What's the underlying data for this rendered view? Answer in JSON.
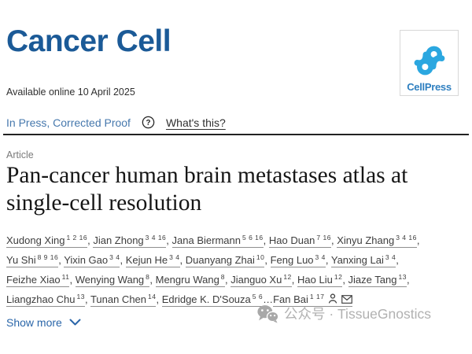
{
  "header": {
    "journal": "Cancer Cell",
    "logo_text": "CellPress"
  },
  "meta": {
    "available_online": "Available online 10 April 2025",
    "status": "In Press, Corrected Proof",
    "whats_this": "What's this?"
  },
  "article": {
    "type": "Article",
    "title": "Pan-cancer human brain metastases atlas at\nsingle-cell resolution",
    "show_more_label": "Show more",
    "authors": [
      {
        "name": "Xudong Xing",
        "sup": "1 2 16",
        "trail": ", "
      },
      {
        "name": "Jian Zhong",
        "sup": "3 4 16",
        "trail": ", "
      },
      {
        "name": "Jana Biermann",
        "sup": "5 6 16",
        "trail": ", "
      },
      {
        "name": "Hao Duan",
        "sup": "7 16",
        "trail": ", "
      },
      {
        "name": "Xinyu Zhang",
        "sup": "3 4 16",
        "trail": ",\n"
      },
      {
        "name": "Yu Shi",
        "sup": "8 9 16",
        "trail": ", "
      },
      {
        "name": "Yixin Gao",
        "sup": "3 4",
        "trail": ", "
      },
      {
        "name": "Kejun He",
        "sup": "3 4",
        "trail": ", "
      },
      {
        "name": "Duanyang Zhai",
        "sup": "10",
        "trail": ", "
      },
      {
        "name": "Feng Luo",
        "sup": "3 4",
        "trail": ", "
      },
      {
        "name": "Yanxing Lai",
        "sup": "3 4",
        "trail": ",\n"
      },
      {
        "name": "Feizhe Xiao",
        "sup": "11",
        "trail": ", "
      },
      {
        "name": "Wenying Wang",
        "sup": "8",
        "trail": ", "
      },
      {
        "name": "Mengru Wang",
        "sup": "8",
        "trail": ", "
      },
      {
        "name": "Jianguo Xu",
        "sup": "12",
        "trail": ", "
      },
      {
        "name": "Hao Liu",
        "sup": "12",
        "trail": ", "
      },
      {
        "name": "Jiaze Tang",
        "sup": "13",
        "trail": ",\n"
      },
      {
        "name": "Liangzhao Chu",
        "sup": "13",
        "trail": ", "
      },
      {
        "name": "Tunan Chen",
        "sup": "14",
        "trail": ", "
      },
      {
        "name": "Edridge K. D'Souza",
        "sup": "5 6",
        "trail": "…"
      },
      {
        "name": "Fan Bai",
        "sup": "1 17",
        "corresponding": true,
        "trail": ""
      }
    ]
  },
  "watermark": {
    "text": "公众号 · TissueGnostics"
  },
  "icons": {
    "publisher_mark": "cellpress-icon",
    "status_help": "circled-question-mark-icon",
    "author_profile": "person-icon",
    "correspondence": "envelope-icon",
    "show_more": "chevron-down-icon",
    "watermark_brand": "wechat-icon"
  },
  "colors": {
    "journal_blue": "#1b5a97",
    "status_link_blue": "#4678ad",
    "accent_blue": "#2a66a9",
    "cellpress_icon_blue": "#2ba7e0",
    "cellpress_text_blue": "#2e7fc0",
    "title_ink": "#161616",
    "author_ink": "#3d3d3d",
    "watermark_gray": "#b1b1b1"
  }
}
